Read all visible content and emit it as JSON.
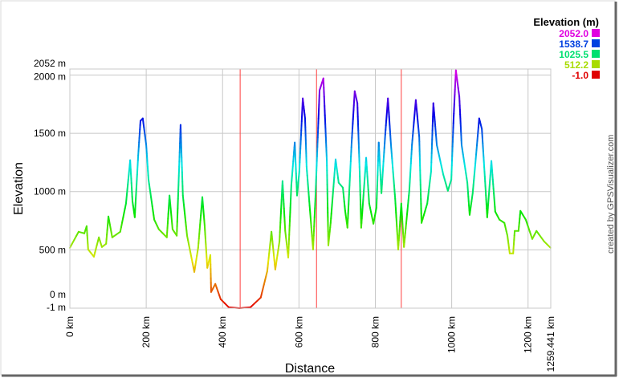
{
  "chart_data": {
    "type": "line",
    "title": "",
    "xlabel": "Distance",
    "ylabel": "Elevation",
    "xlim": [
      0,
      1259.441
    ],
    "ylim": [
      -1,
      2052
    ],
    "grid": true,
    "x_ticks": [
      {
        "value": 0,
        "label": "0 km"
      },
      {
        "value": 200,
        "label": "200 km"
      },
      {
        "value": 400,
        "label": "400 km"
      },
      {
        "value": 600,
        "label": "600 km"
      },
      {
        "value": 800,
        "label": "800 km"
      },
      {
        "value": 1000,
        "label": "1000 km"
      },
      {
        "value": 1200,
        "label": "1200 km"
      },
      {
        "value": 1259.441,
        "label": "1259.441 km"
      }
    ],
    "y_ticks": [
      {
        "value": 2052,
        "label": "2052 m"
      },
      {
        "value": 2000,
        "label": "2000 m"
      },
      {
        "value": 1500,
        "label": "1500 m"
      },
      {
        "value": 1000,
        "label": "1000 m"
      },
      {
        "value": 500,
        "label": "500 m"
      },
      {
        "value": 0,
        "label": "0 m"
      },
      {
        "value": -1,
        "label": "-1 m"
      }
    ],
    "legend": {
      "title": "Elevation (m)",
      "placement": "top-right",
      "entries": [
        {
          "label": "2052.0",
          "color": "#e000e0"
        },
        {
          "label": "1538.7",
          "color": "#0040e0"
        },
        {
          "label": "1025.5",
          "color": "#00e070"
        },
        {
          "label": "512.2",
          "color": "#a8dc00"
        },
        {
          "label": "-1.0",
          "color": "#e00000"
        }
      ]
    },
    "markers_km": [
      446,
      646,
      868
    ],
    "marker_color": "#ff4040",
    "x": [
      0,
      23,
      38,
      44,
      48,
      63,
      76,
      84,
      95,
      101,
      111,
      132,
      147,
      158,
      164,
      170,
      179,
      185,
      191,
      200,
      206,
      221,
      233,
      254,
      261,
      269,
      280,
      290,
      296,
      307,
      326,
      336,
      347,
      353,
      360,
      368,
      370,
      381,
      395,
      416,
      444,
      473,
      500,
      517,
      528,
      538,
      549,
      557,
      564,
      572,
      580,
      589,
      595,
      601,
      610,
      616,
      620,
      627,
      637,
      643,
      654,
      664,
      673,
      677,
      683,
      696,
      704,
      715,
      721,
      727,
      738,
      746,
      753,
      759,
      763,
      776,
      784,
      795,
      803,
      809,
      816,
      826,
      833,
      841,
      852,
      860,
      868,
      875,
      889,
      896,
      906,
      915,
      921,
      936,
      946,
      952,
      961,
      978,
      990,
      999,
      1005,
      1011,
      1020,
      1026,
      1041,
      1047,
      1055,
      1062,
      1072,
      1079,
      1089,
      1093,
      1104,
      1114,
      1125,
      1138,
      1146,
      1152,
      1161,
      1165,
      1175,
      1180,
      1194,
      1211,
      1222,
      1242,
      1259
    ],
    "series": [
      {
        "name": "Elevation",
        "values": [
          517,
          655,
          641,
          703,
          503,
          441,
          607,
          524,
          552,
          786,
          607,
          655,
          897,
          1269,
          917,
          779,
          1310,
          1607,
          1628,
          1400,
          1103,
          759,
          676,
          607,
          966,
          676,
          621,
          1572,
          966,
          621,
          310,
          517,
          952,
          710,
          345,
          455,
          138,
          207,
          76,
          7,
          -1,
          7,
          90,
          317,
          655,
          331,
          572,
          1090,
          662,
          434,
          1055,
          1421,
          966,
          1172,
          1800,
          1628,
          1214,
          917,
          503,
          938,
          1869,
          1972,
          1262,
          538,
          731,
          1276,
          1076,
          1034,
          834,
          690,
          1421,
          1862,
          1759,
          1172,
          690,
          1290,
          897,
          724,
          862,
          1421,
          986,
          1490,
          1800,
          1400,
          938,
          503,
          897,
          524,
          1007,
          1400,
          1786,
          1469,
          731,
          897,
          1172,
          1759,
          1400,
          1145,
          1007,
          1103,
          1628,
          2041,
          1814,
          1400,
          1076,
          800,
          986,
          1241,
          1628,
          1538,
          1007,
          779,
          1262,
          828,
          759,
          731,
          621,
          469,
          469,
          662,
          662,
          834,
          759,
          593,
          662,
          572,
          517
        ]
      }
    ]
  },
  "credit": "created by GPSVisualizer.com"
}
